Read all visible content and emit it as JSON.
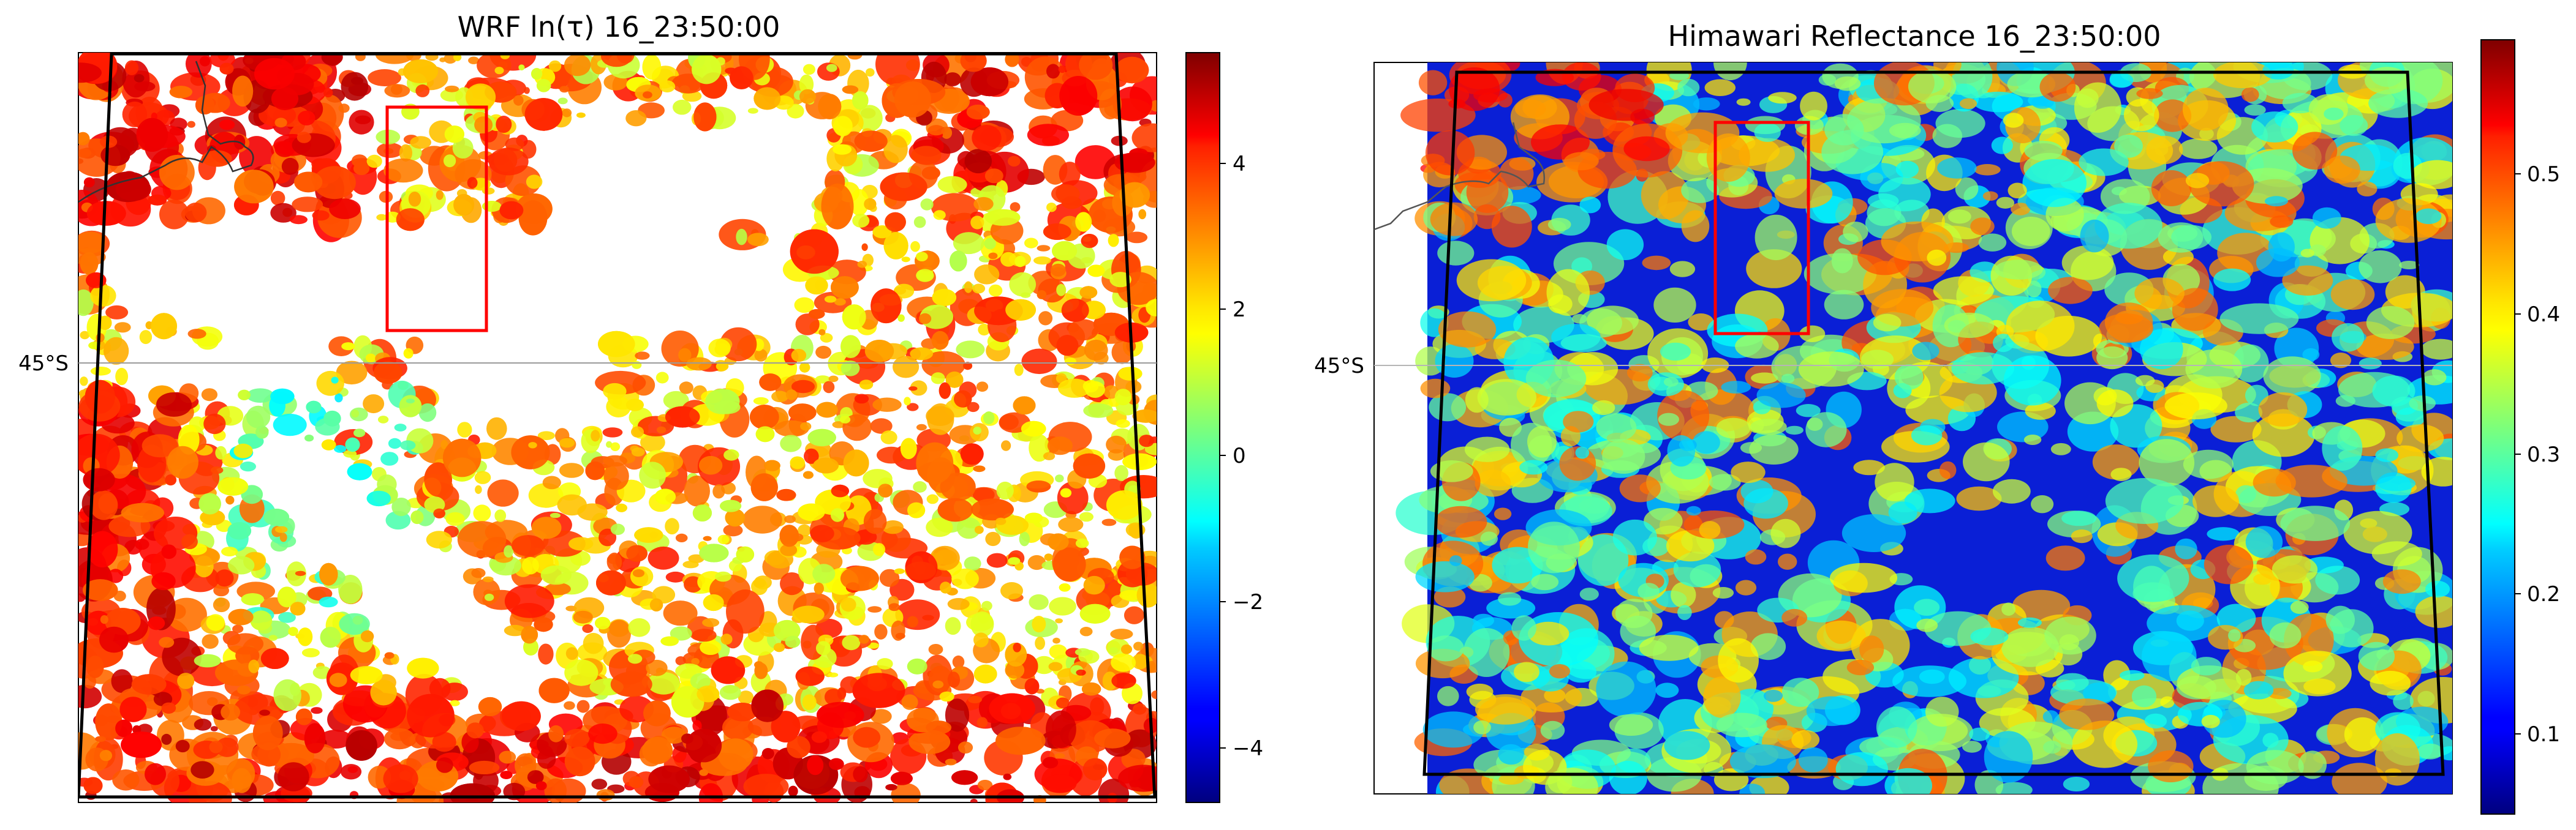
{
  "figure": {
    "panels": [
      {
        "id": "wrf",
        "title": "WRF ln(τ) 16_23:50:00",
        "lat_label": "45°S",
        "colorbar_ticks": [
          "4",
          "2",
          "0",
          "−2",
          "−4"
        ]
      },
      {
        "id": "himawari",
        "title": "Himawari Reflectance 16_23:50:00",
        "lat_label": "45°S",
        "colorbar_ticks": [
          "0.5",
          "0.4",
          "0.3",
          "0.2",
          "0.1"
        ]
      }
    ]
  },
  "chart_data": [
    {
      "type": "heatmap",
      "title": "WRF ln(τ) 16_23:50:00",
      "xlabel": "",
      "ylabel": "",
      "colormap": "jet",
      "missing_color": "#ffffff",
      "colorbar": {
        "ticks": [
          4,
          2,
          0,
          -2,
          -4
        ],
        "range": [
          -5,
          5.5
        ]
      },
      "latitude_gridline": "45°S",
      "highlight_box_color": "#ff0000",
      "grid": false
    },
    {
      "type": "heatmap",
      "title": "Himawari Reflectance 16_23:50:00",
      "xlabel": "",
      "ylabel": "",
      "colormap": "jet",
      "colorbar": {
        "ticks": [
          0.5,
          0.4,
          0.3,
          0.2,
          0.1
        ],
        "range": [
          0.03,
          0.6
        ]
      },
      "latitude_gridline": "45°S",
      "highlight_box_color": "#ff0000",
      "grid": false
    }
  ]
}
